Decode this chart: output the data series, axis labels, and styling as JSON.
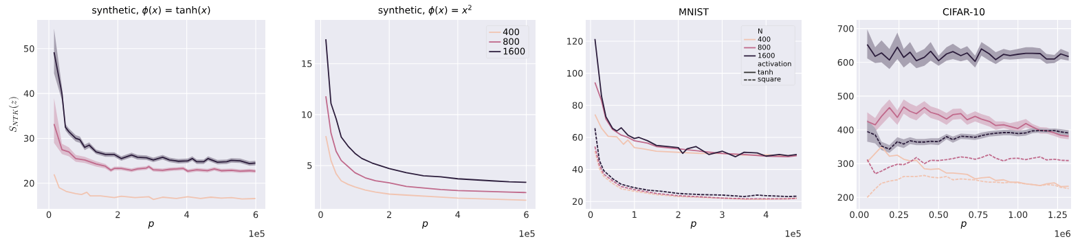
{
  "chart_data": [
    {
      "type": "line",
      "title": "synthetic, *ϕ*(*x*) = tanh(*x*)",
      "xlabel": "p",
      "ylabel": "S_{NTK}(z)",
      "annotations": [
        "1e5"
      ],
      "grid": true,
      "xlim": [
        -0.34,
        6.28
      ],
      "ylim": [
        14.3,
        56.4
      ],
      "xticks": [
        0,
        2,
        4,
        6
      ],
      "yticks": [
        20,
        30,
        40,
        50
      ],
      "series": [
        {
          "color": "#f1c4b1",
          "line_style": "solid",
          "x": [
            0.15,
            0.3,
            0.5,
            0.78,
            0.95,
            1.1,
            1.2,
            1.5,
            1.9,
            2.1,
            2.5,
            2.9,
            3.03,
            3.3,
            3.7,
            4.03,
            4.4,
            4.7,
            5.0,
            5.3,
            5.6,
            5.99
          ],
          "values": [
            22,
            19,
            18.2,
            17.7,
            17.5,
            18,
            17.2,
            17.2,
            16.8,
            17.1,
            16.8,
            17,
            16.4,
            16.9,
            16.6,
            17,
            16.6,
            16.9,
            16.7,
            16.8,
            16.5,
            16.6
          ]
        },
        {
          "color": "#c0698b",
          "line_style": "solid",
          "x": [
            0.15,
            0.38,
            0.58,
            0.78,
            1.04,
            1.37,
            1.64,
            1.8,
            1.9,
            2.1,
            2.4,
            2.57,
            2.83,
            2.9,
            3.03,
            3.3,
            3.5,
            3.9,
            4.03,
            4.29,
            4.6,
            4.8,
            5.0,
            5.3,
            5.55,
            5.82,
            5.99
          ],
          "values": [
            33.2,
            27.5,
            27,
            25.5,
            25.2,
            24.3,
            23.8,
            22.9,
            23.3,
            23.3,
            22.9,
            23.2,
            23.4,
            23.7,
            23,
            22.9,
            23.1,
            23.3,
            22.7,
            23,
            22.8,
            23.2,
            22.8,
            22.9,
            22.7,
            22.8,
            22.7
          ],
          "lower": [
            29,
            26.5,
            26,
            24.8,
            24.5,
            23.7,
            23.3,
            22.5,
            22.9,
            22.9,
            22.5,
            22.8,
            23,
            23.3,
            22.6,
            22.5,
            22.7,
            22.9,
            22.3,
            22.6,
            22.4,
            22.8,
            22.4,
            22.5,
            22.3,
            22.4,
            22.3
          ],
          "upper": [
            39,
            28.8,
            28,
            26.3,
            25.9,
            24.9,
            24.3,
            23.3,
            23.7,
            23.7,
            23.3,
            23.6,
            23.8,
            24.1,
            23.4,
            23.3,
            23.5,
            23.7,
            23.1,
            23.4,
            23.2,
            23.6,
            23.2,
            23.3,
            23.1,
            23.2,
            23.1
          ]
        },
        {
          "color": "#2c1d3c",
          "line_style": "solid",
          "x": [
            0.15,
            0.38,
            0.48,
            0.58,
            0.78,
            0.9,
            1.04,
            1.17,
            1.37,
            1.64,
            1.9,
            2.1,
            2.4,
            2.57,
            2.83,
            3.03,
            3.3,
            3.5,
            3.76,
            4.03,
            4.16,
            4.29,
            4.49,
            4.62,
            4.89,
            5.16,
            5.29,
            5.55,
            5.82,
            5.99
          ],
          "values": [
            49.2,
            40,
            32.5,
            31.5,
            30,
            29.7,
            28,
            28.5,
            27,
            26.4,
            26.4,
            25.5,
            26.3,
            25.8,
            25.7,
            25.2,
            25.8,
            25.2,
            24.9,
            25,
            25.5,
            24.8,
            24.8,
            25.5,
            24.7,
            24.8,
            25.1,
            25,
            24.4,
            24.5
          ],
          "lower": [
            44.5,
            38.5,
            31.8,
            30.8,
            29.3,
            29,
            27.4,
            27.9,
            26.5,
            25.9,
            25.9,
            25,
            25.8,
            25.3,
            25.2,
            24.7,
            25.3,
            24.7,
            24.4,
            24.5,
            25,
            24.3,
            24.3,
            25,
            24.2,
            24.3,
            24.6,
            24.5,
            23.9,
            24
          ],
          "upper": [
            54.5,
            41.5,
            33.2,
            32.2,
            30.7,
            30.4,
            28.6,
            29.1,
            27.5,
            26.9,
            26.9,
            26,
            26.8,
            26.3,
            26.2,
            25.7,
            26.3,
            25.7,
            25.4,
            25.5,
            26,
            25.3,
            25.3,
            26,
            25.2,
            25.3,
            25.6,
            25.5,
            24.9,
            25
          ]
        }
      ]
    },
    {
      "type": "line",
      "title": "synthetic, *ϕ*(*x*) = *x*$^{2}$",
      "xlabel": "p",
      "annotations": [
        "1e5"
      ],
      "grid": true,
      "legend": "top right",
      "xlim": [
        -0.17,
        6.27
      ],
      "ylim": [
        0.75,
        19.3
      ],
      "xticks": [
        0,
        2,
        4,
        6
      ],
      "yticks": [
        5,
        10,
        15
      ],
      "series": [
        {
          "name": "400",
          "color": "#f1c4b1",
          "line_style": "solid",
          "x": [
            0.15,
            0.3,
            0.45,
            0.6,
            0.8,
            1.0,
            1.3,
            1.6,
            2.0,
            2.5,
            3.0,
            3.5,
            4.0,
            5.0,
            6.0
          ],
          "values": [
            7.9,
            5.5,
            4.2,
            3.5,
            3.15,
            2.9,
            2.6,
            2.4,
            2.2,
            2.1,
            2.0,
            1.9,
            1.8,
            1.7,
            1.6
          ]
        },
        {
          "name": "800",
          "color": "#c0698b",
          "line_style": "solid",
          "x": [
            0.15,
            0.3,
            0.45,
            0.6,
            0.8,
            1.0,
            1.3,
            1.6,
            2.0,
            2.5,
            3.0,
            3.5,
            4.0,
            4.5,
            5.0,
            5.5,
            6.0
          ],
          "values": [
            11.8,
            8.2,
            6.4,
            5.5,
            4.9,
            4.3,
            3.8,
            3.5,
            3.3,
            2.95,
            2.8,
            2.65,
            2.55,
            2.5,
            2.45,
            2.4,
            2.35
          ]
        },
        {
          "name": "1600",
          "color": "#2c1d3c",
          "line_style": "solid",
          "x": [
            0.15,
            0.3,
            0.45,
            0.6,
            0.8,
            1.0,
            1.2,
            1.5,
            2.0,
            2.5,
            3.0,
            3.5,
            4.0,
            4.5,
            5.0,
            5.5,
            6.0
          ],
          "values": [
            17.4,
            11.1,
            9.6,
            7.8,
            6.9,
            6.2,
            5.7,
            5.25,
            4.7,
            4.3,
            4.0,
            3.9,
            3.7,
            3.6,
            3.5,
            3.4,
            3.35
          ]
        }
      ]
    },
    {
      "type": "line",
      "title": "MNIST",
      "xlabel": "p",
      "legend_title": "N",
      "annotations": [
        "1e5",
        "activation"
      ],
      "grid": true,
      "legend": "top right",
      "xlim": [
        -0.11,
        4.81
      ],
      "ylim": [
        15.4,
        133.3
      ],
      "xticks": [
        0,
        1,
        2,
        3,
        4
      ],
      "yticks": [
        20,
        40,
        60,
        80,
        100,
        120
      ],
      "series": [
        {
          "name": "400",
          "color": "#f1c4b1",
          "line_style": "solid",
          "x": [
            0.1,
            0.25,
            0.4,
            0.6,
            0.75,
            0.85,
            1.0,
            1.2,
            1.5,
            2.0,
            2.5,
            3.0,
            3.5,
            4.0,
            4.5,
            4.7
          ],
          "values": [
            74.3,
            65.7,
            60.7,
            60.3,
            55.7,
            58.3,
            53.6,
            52.9,
            51.4,
            50.7,
            50,
            50,
            48.9,
            49.1,
            48.6,
            48.9
          ]
        },
        {
          "name": "800",
          "color": "#c0698b",
          "line_style": "solid",
          "x": [
            0.1,
            0.25,
            0.35,
            0.5,
            0.7,
            0.85,
            1.0,
            1.3,
            1.5,
            2.0,
            2.5,
            3.0,
            3.5,
            4.0,
            4.5,
            4.7
          ],
          "values": [
            94.3,
            82.9,
            71.4,
            65,
            61.4,
            60,
            57.9,
            56.4,
            54.3,
            52.9,
            51.4,
            50,
            49.3,
            48.3,
            47.9,
            48.6
          ]
        },
        {
          "name": "1600",
          "color": "#2c1d3c",
          "line_style": "solid",
          "x": [
            0.1,
            0.25,
            0.35,
            0.5,
            0.6,
            0.7,
            0.85,
            1.0,
            1.1,
            1.3,
            1.5,
            2.0,
            2.1,
            2.2,
            2.4,
            2.7,
            3.0,
            3.3,
            3.5,
            3.8,
            4.0,
            4.3,
            4.5,
            4.7
          ],
          "values": [
            121.4,
            85.7,
            72.9,
            65.7,
            64,
            66,
            61.4,
            59.3,
            60,
            57.9,
            55,
            53.6,
            50,
            52.9,
            54.3,
            49.3,
            51.4,
            47.9,
            50.7,
            50.3,
            48.3,
            49.3,
            48.6,
            49.3
          ]
        },
        {
          "color": "#f1c4b1",
          "line_style": "dashed",
          "x": [
            0.1,
            0.2,
            0.3,
            0.5,
            0.7,
            1.0,
            1.5,
            2.0,
            2.5,
            3.0,
            3.5,
            4.0,
            4.5,
            4.7
          ],
          "values": [
            51.4,
            40.7,
            35.7,
            31.4,
            27.9,
            26.4,
            24.3,
            23.1,
            22.6,
            22,
            21.4,
            21.4,
            21.7,
            22
          ]
        },
        {
          "color": "#c0698b",
          "line_style": "dashed",
          "x": [
            0.1,
            0.2,
            0.3,
            0.5,
            0.7,
            1.0,
            1.5,
            2.0,
            2.5,
            3.0,
            3.5,
            4.0,
            4.5,
            4.7
          ],
          "values": [
            54.3,
            42.9,
            37.1,
            32.9,
            29.3,
            27.4,
            25,
            23.6,
            22.9,
            22.1,
            21.7,
            21.7,
            21.7,
            22
          ]
        },
        {
          "color": "#2c1d3c",
          "line_style": "dashed",
          "x": [
            0.1,
            0.2,
            0.3,
            0.5,
            0.7,
            1.0,
            1.3,
            1.6,
            2.0,
            2.5,
            3.0,
            3.5,
            3.8,
            4.0,
            4.5,
            4.7
          ],
          "values": [
            65.7,
            45.7,
            39.3,
            34.3,
            30.7,
            28.6,
            27.1,
            26.4,
            25,
            24.3,
            24,
            23.1,
            24,
            23.6,
            23.1,
            23.3
          ]
        },
        {
          "name": "tanh",
          "color": "#333333",
          "line_style": "solid",
          "values": [
            null
          ]
        },
        {
          "name": "square",
          "color": "#333333",
          "line_style": "dashed",
          "values": [
            null
          ]
        }
      ]
    },
    {
      "type": "line",
      "title": "CIFAR-10",
      "xlabel": "p",
      "annotations": [
        "1e6"
      ],
      "grid": true,
      "xlim": [
        -0.017,
        1.335
      ],
      "ylim": [
        166,
        725.8
      ],
      "xticks": [
        {
          "value": 0,
          "label": "0.00"
        },
        {
          "value": 0.25,
          "label": "0.25"
        },
        {
          "value": 0.5,
          "label": "0.50"
        },
        {
          "value": 0.75,
          "label": "0.75"
        },
        {
          "value": 1,
          "label": "1.00"
        },
        {
          "value": 1.25,
          "label": "1.25"
        }
      ],
      "yticks": [
        200,
        300,
        400,
        500,
        600,
        700
      ],
      "x": [
        0.05,
        0.1,
        0.14,
        0.19,
        0.24,
        0.28,
        0.32,
        0.36,
        0.41,
        0.45,
        0.5,
        0.55,
        0.59,
        0.64,
        0.68,
        0.73,
        0.77,
        0.82,
        0.86,
        0.91,
        0.95,
        1.0,
        1.05,
        1.09,
        1.14,
        1.18,
        1.23,
        1.27,
        1.32
      ],
      "series": [
        {
          "color": "#f1c4b1",
          "line_style": "solid",
          "values": [
            305,
            330,
            350,
            322,
            325,
            313,
            308,
            310,
            285,
            283,
            285,
            272,
            272,
            270,
            268,
            255,
            258,
            260,
            250,
            252,
            245,
            245,
            240,
            238,
            235,
            240,
            243,
            232,
            233
          ]
        },
        {
          "color": "#c0698b",
          "line_style": "solid",
          "values": [
            425,
            415,
            440,
            466,
            437,
            468,
            455,
            448,
            466,
            452,
            445,
            432,
            445,
            448,
            430,
            440,
            432,
            425,
            413,
            415,
            410,
            404,
            419,
            409,
            398,
            398,
            391,
            384,
            381
          ],
          "lower": [
            395,
            395,
            415,
            440,
            415,
            448,
            435,
            428,
            450,
            435,
            428,
            415,
            430,
            432,
            415,
            425,
            418,
            410,
            400,
            405,
            400,
            393,
            407,
            400,
            389,
            389,
            382,
            375,
            372
          ],
          "upper": [
            452,
            435,
            465,
            490,
            458,
            490,
            478,
            470,
            485,
            470,
            462,
            450,
            462,
            463,
            445,
            455,
            447,
            440,
            425,
            425,
            420,
            425,
            432,
            418,
            408,
            407,
            400,
            393,
            390
          ]
        },
        {
          "color": "#2c1d3c",
          "line_style": "solid",
          "values": [
            653,
            618,
            628,
            607,
            645,
            615,
            630,
            605,
            615,
            633,
            605,
            625,
            632,
            620,
            628,
            603,
            640,
            625,
            608,
            624,
            620,
            624,
            627,
            627,
            626,
            610,
            610,
            625,
            617
          ],
          "lower": [
            612,
            598,
            600,
            580,
            610,
            585,
            600,
            583,
            590,
            605,
            590,
            605,
            610,
            603,
            608,
            585,
            620,
            605,
            595,
            610,
            608,
            610,
            612,
            612,
            610,
            596,
            598,
            610,
            605
          ],
          "upper": [
            698,
            645,
            665,
            640,
            688,
            640,
            660,
            628,
            640,
            660,
            620,
            645,
            655,
            640,
            648,
            620,
            660,
            645,
            630,
            640,
            635,
            640,
            645,
            645,
            642,
            625,
            622,
            640,
            630
          ]
        },
        {
          "color": "#f1c4b1",
          "line_style": "dashed",
          "values": [
            200,
            225,
            242,
            248,
            252,
            262,
            262,
            262,
            265,
            260,
            258,
            262,
            252,
            255,
            253,
            252,
            248,
            245,
            245,
            243,
            245,
            243,
            240,
            238,
            235,
            238,
            236,
            230,
            226
          ]
        },
        {
          "color": "#c0698b",
          "line_style": "dashed",
          "values": [
            312,
            270,
            278,
            290,
            298,
            297,
            305,
            318,
            300,
            310,
            309,
            312,
            315,
            320,
            318,
            313,
            318,
            327,
            316,
            308,
            315,
            316,
            312,
            316,
            320,
            311,
            313,
            310,
            309
          ]
        },
        {
          "color": "#2c1d3c",
          "line_style": "dashed",
          "values": [
            395,
            385,
            352,
            343,
            365,
            358,
            368,
            364,
            364,
            366,
            365,
            380,
            371,
            381,
            380,
            378,
            383,
            388,
            390,
            392,
            392,
            389,
            391,
            397,
            398,
            397,
            398,
            394,
            391
          ],
          "lower": [
            365,
            360,
            340,
            332,
            352,
            346,
            358,
            355,
            355,
            357,
            355,
            372,
            362,
            373,
            372,
            370,
            374,
            380,
            382,
            384,
            384,
            381,
            383,
            390,
            392,
            391,
            392,
            386,
            383
          ],
          "upper": [
            430,
            405,
            365,
            355,
            378,
            372,
            378,
            373,
            373,
            375,
            375,
            388,
            380,
            389,
            388,
            386,
            392,
            396,
            398,
            400,
            400,
            397,
            400,
            405,
            404,
            403,
            404,
            402,
            399
          ]
        }
      ]
    }
  ]
}
